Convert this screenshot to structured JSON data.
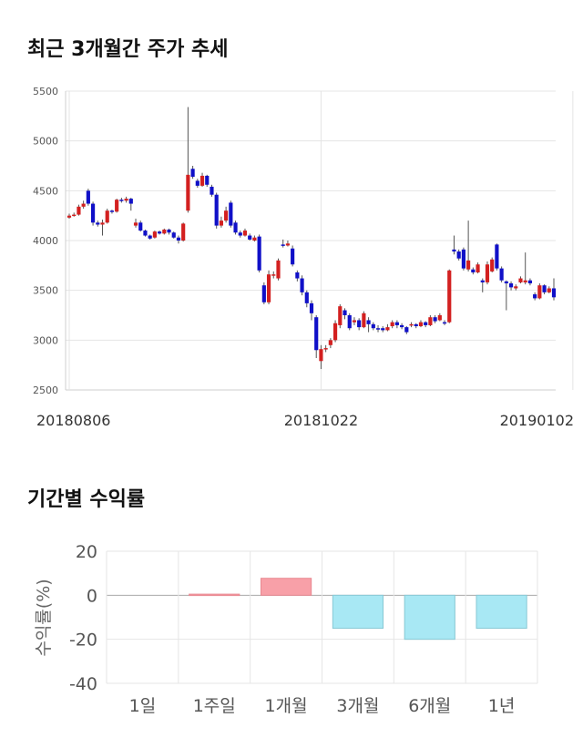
{
  "sections": {
    "price_title": "최근 3개월간 주가 추세",
    "return_title": "기간별 수익률"
  },
  "colors": {
    "up": "#d32020",
    "down": "#1010c8",
    "positive_bar": "#f8a0a8",
    "negative_bar": "#a8e8f4"
  },
  "chart_data": [
    {
      "type": "candlestick",
      "title": "최근 3개월간 주가 추세",
      "ylim": [
        2500,
        5500
      ],
      "yticks": [
        2500,
        3000,
        3500,
        4000,
        4500,
        5000,
        5500
      ],
      "x_tick_labels": [
        "20180806",
        "20181022",
        "20190102"
      ],
      "x_tick_index": [
        0,
        53,
        106
      ],
      "grid": true,
      "candles": [
        [
          4230,
          4250,
          4270,
          4220
        ],
        [
          4250,
          4260,
          4280,
          4240
        ],
        [
          4260,
          4340,
          4360,
          4250
        ],
        [
          4340,
          4370,
          4400,
          4320
        ],
        [
          4500,
          4370,
          4520,
          4350
        ],
        [
          4370,
          4180,
          4390,
          4150
        ],
        [
          4180,
          4160,
          4200,
          4140
        ],
        [
          4160,
          4180,
          4210,
          4050
        ],
        [
          4180,
          4300,
          4320,
          4170
        ],
        [
          4300,
          4290,
          4310,
          4270
        ],
        [
          4290,
          4410,
          4420,
          4280
        ],
        [
          4410,
          4400,
          4430,
          4380
        ],
        [
          4400,
          4420,
          4440,
          4380
        ],
        [
          4420,
          4370,
          4430,
          4300
        ],
        [
          4150,
          4180,
          4220,
          4130
        ],
        [
          4180,
          4100,
          4200,
          4090
        ],
        [
          4100,
          4050,
          4110,
          4040
        ],
        [
          4050,
          4020,
          4060,
          4010
        ],
        [
          4030,
          4090,
          4100,
          4020
        ],
        [
          4090,
          4070,
          4100,
          4060
        ],
        [
          4070,
          4110,
          4120,
          4060
        ],
        [
          4110,
          4080,
          4120,
          4060
        ],
        [
          4080,
          4030,
          4090,
          4020
        ],
        [
          4030,
          4000,
          4050,
          3970
        ],
        [
          4000,
          4170,
          4180,
          3990
        ],
        [
          4300,
          4660,
          5340,
          4280
        ],
        [
          4720,
          4640,
          4750,
          4620
        ],
        [
          4600,
          4550,
          4620,
          4530
        ],
        [
          4550,
          4650,
          4680,
          4540
        ],
        [
          4650,
          4560,
          4660,
          4540
        ],
        [
          4540,
          4460,
          4560,
          4440
        ],
        [
          4460,
          4150,
          4480,
          4120
        ],
        [
          4150,
          4200,
          4240,
          4130
        ],
        [
          4200,
          4300,
          4340,
          4180
        ],
        [
          4380,
          4150,
          4400,
          4130
        ],
        [
          4180,
          4080,
          4200,
          4060
        ],
        [
          4080,
          4050,
          4100,
          4030
        ],
        [
          4050,
          4100,
          4120,
          4040
        ],
        [
          4050,
          4010,
          4070,
          4000
        ],
        [
          4000,
          4030,
          4050,
          3990
        ],
        [
          4040,
          3700,
          4060,
          3680
        ],
        [
          3550,
          3380,
          3580,
          3360
        ],
        [
          3380,
          3660,
          3700,
          3360
        ],
        [
          3650,
          3660,
          3690,
          3620
        ],
        [
          3620,
          3800,
          3820,
          3600
        ],
        [
          3960,
          3950,
          4010,
          3930
        ],
        [
          3950,
          3970,
          4000,
          3940
        ],
        [
          3920,
          3760,
          3950,
          3740
        ],
        [
          3680,
          3620,
          3700,
          3590
        ],
        [
          3620,
          3480,
          3650,
          3450
        ],
        [
          3480,
          3370,
          3500,
          3330
        ],
        [
          3370,
          3270,
          3400,
          3200
        ],
        [
          3230,
          2900,
          3250,
          2820
        ],
        [
          2790,
          2910,
          2950,
          2710
        ],
        [
          2910,
          2920,
          2950,
          2880
        ],
        [
          2950,
          3000,
          3020,
          2920
        ],
        [
          3000,
          3170,
          3200,
          2980
        ],
        [
          3150,
          3340,
          3360,
          3120
        ],
        [
          3300,
          3250,
          3320,
          3210
        ],
        [
          3250,
          3120,
          3270,
          3100
        ],
        [
          3180,
          3200,
          3230,
          3150
        ],
        [
          3200,
          3130,
          3220,
          3100
        ],
        [
          3130,
          3270,
          3290,
          3120
        ],
        [
          3200,
          3160,
          3230,
          3080
        ],
        [
          3160,
          3120,
          3180,
          3100
        ],
        [
          3120,
          3110,
          3150,
          3080
        ],
        [
          3120,
          3100,
          3140,
          3080
        ],
        [
          3100,
          3130,
          3160,
          3090
        ],
        [
          3140,
          3180,
          3200,
          3120
        ],
        [
          3180,
          3150,
          3200,
          3120
        ],
        [
          3150,
          3130,
          3170,
          3110
        ],
        [
          3130,
          3080,
          3140,
          3060
        ],
        [
          3150,
          3160,
          3180,
          3130
        ],
        [
          3160,
          3140,
          3170,
          3120
        ],
        [
          3140,
          3180,
          3200,
          3130
        ],
        [
          3180,
          3150,
          3190,
          3130
        ],
        [
          3150,
          3230,
          3250,
          3140
        ],
        [
          3230,
          3190,
          3250,
          3170
        ],
        [
          3200,
          3250,
          3270,
          3190
        ],
        [
          3180,
          3170,
          3200,
          3150
        ],
        [
          3180,
          3700,
          3710,
          3170
        ],
        [
          3910,
          3890,
          4050,
          3860
        ],
        [
          3890,
          3820,
          3910,
          3800
        ],
        [
          3910,
          3720,
          3930,
          3700
        ],
        [
          3710,
          3800,
          4200,
          3690
        ],
        [
          3710,
          3680,
          3730,
          3660
        ],
        [
          3680,
          3760,
          3780,
          3670
        ],
        [
          3600,
          3580,
          3620,
          3480
        ],
        [
          3580,
          3760,
          3790,
          3560
        ],
        [
          3690,
          3810,
          3830,
          3680
        ],
        [
          3960,
          3720,
          3970,
          3700
        ],
        [
          3720,
          3600,
          3740,
          3580
        ],
        [
          3590,
          3570,
          3600,
          3300
        ],
        [
          3570,
          3530,
          3590,
          3500
        ],
        [
          3520,
          3540,
          3560,
          3500
        ],
        [
          3580,
          3620,
          3640,
          3570
        ],
        [
          3580,
          3600,
          3880,
          3560
        ],
        [
          3600,
          3570,
          3620,
          3550
        ],
        [
          3460,
          3420,
          3480,
          3400
        ],
        [
          3420,
          3550,
          3570,
          3410
        ],
        [
          3550,
          3480,
          3560,
          3460
        ],
        [
          3480,
          3520,
          3540,
          3470
        ],
        [
          3520,
          3430,
          3620,
          3400
        ]
      ]
    },
    {
      "type": "bar",
      "title": "기간별 수익률",
      "ylabel": "수익률(%)",
      "ylim": [
        -40,
        20
      ],
      "yticks": [
        20,
        0,
        -20,
        -40
      ],
      "categories": [
        "1일",
        "1주일",
        "1개월",
        "3개월",
        "6개월",
        "1년"
      ],
      "values": [
        0,
        0.5,
        7.7,
        -15,
        -20,
        -15
      ],
      "grid": true
    }
  ]
}
